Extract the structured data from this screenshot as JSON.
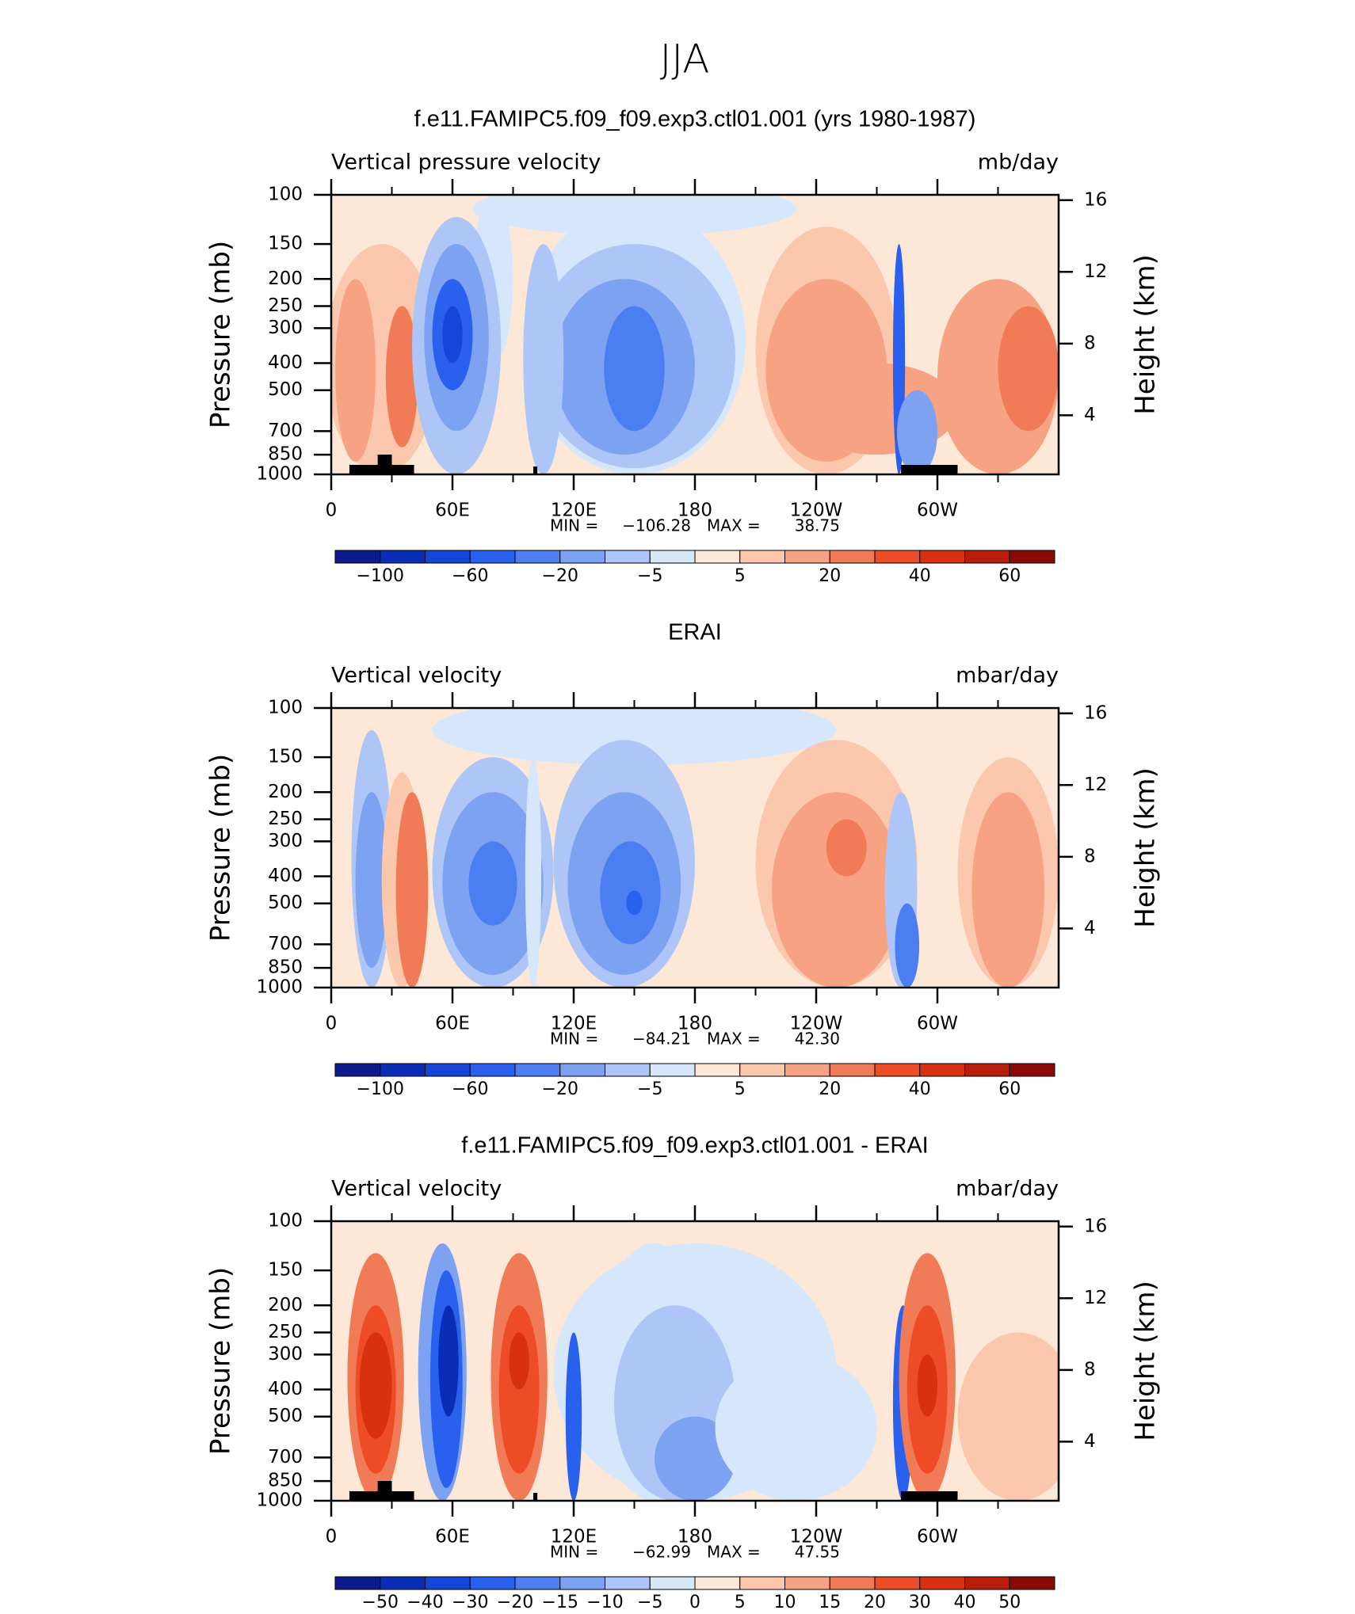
{
  "title": "JJA",
  "chart_data": [
    {
      "type": "contour",
      "title": "f.e11.FAMIPC5.f09_f09.exp3.ctl01.001 (yrs 1980-1987)",
      "left_label": "Vertical pressure velocity",
      "right_label": "mb/day",
      "ylabel": "Pressure (mb)",
      "y2label": "Height (km)",
      "xlim": [
        0,
        360
      ],
      "xticks": [
        0,
        {
          "value": 60,
          "label": "60E"
        },
        {
          "value": 120,
          "label": "120E"
        },
        180,
        {
          "value": 240,
          "label": "120W"
        },
        {
          "value": 300,
          "label": "60W"
        }
      ],
      "ylim": [
        1000,
        100
      ],
      "ylog": true,
      "yticks": [
        100,
        150,
        200,
        250,
        300,
        400,
        500,
        700,
        850,
        1000
      ],
      "y2lim": [
        0.7,
        16.3
      ],
      "y2ticks": [
        16,
        12,
        8,
        4
      ],
      "min_text": "MIN =",
      "min": {
        "value": -106.28,
        "label": "−106.28"
      },
      "max_text": "MAX =",
      "max": 38.75,
      "colors": [
        "#0b1a8a",
        "#0a2db8",
        "#1446d9",
        "#2a60ee",
        "#4b7ef0",
        "#7ea2f2",
        "#aec5f7",
        "#d6e6fb",
        "#fde7d6",
        "#fbc8ae",
        "#f7a383",
        "#f27b57",
        "#ee4c26",
        "#d9300f",
        "#b81e0a",
        "#8b0a05"
      ],
      "levels": [
        {
          "value": -100,
          "label": "−100"
        },
        {
          "value": -60,
          "label": "−60"
        },
        {
          "value": -20,
          "label": "−20"
        },
        {
          "value": -5,
          "label": "−5"
        },
        5,
        20,
        40,
        60
      ]
    },
    {
      "type": "contour",
      "title": "ERAI",
      "left_label": "Vertical velocity",
      "right_label": "mbar/day",
      "ylabel": "Pressure (mb)",
      "y2label": "Height (km)",
      "xlim": [
        0,
        360
      ],
      "xticks": [
        0,
        {
          "value": 60,
          "label": "60E"
        },
        {
          "value": 120,
          "label": "120E"
        },
        180,
        {
          "value": 240,
          "label": "120W"
        },
        {
          "value": 300,
          "label": "60W"
        }
      ],
      "ylim": [
        1000,
        100
      ],
      "ylog": true,
      "yticks": [
        100,
        150,
        200,
        250,
        300,
        400,
        500,
        700,
        850,
        1000
      ],
      "y2lim": [
        0.7,
        16.3
      ],
      "y2ticks": [
        16,
        12,
        8,
        4
      ],
      "min_text": "MIN =",
      "min": {
        "value": -84.21,
        "label": "−84.21"
      },
      "max_text": "MAX =",
      "max": {
        "value": 42.3,
        "label": "42.30"
      },
      "colors": [
        "#0b1a8a",
        "#0a2db8",
        "#1446d9",
        "#2a60ee",
        "#4b7ef0",
        "#7ea2f2",
        "#aec5f7",
        "#d6e6fb",
        "#fde7d6",
        "#fbc8ae",
        "#f7a383",
        "#f27b57",
        "#ee4c26",
        "#d9300f",
        "#b81e0a",
        "#8b0a05"
      ],
      "levels": [
        {
          "value": -100,
          "label": "−100"
        },
        {
          "value": -60,
          "label": "−60"
        },
        {
          "value": -20,
          "label": "−20"
        },
        {
          "value": -5,
          "label": "−5"
        },
        5,
        20,
        40,
        60
      ]
    },
    {
      "type": "contour",
      "title": "f.e11.FAMIPC5.f09_f09.exp3.ctl01.001 - ERAI",
      "left_label": "Vertical velocity",
      "right_label": "mbar/day",
      "ylabel": "Pressure (mb)",
      "y2label": "Height (km)",
      "xlim": [
        0,
        360
      ],
      "xticks": [
        0,
        {
          "value": 60,
          "label": "60E"
        },
        {
          "value": 120,
          "label": "120E"
        },
        180,
        {
          "value": 240,
          "label": "120W"
        },
        {
          "value": 300,
          "label": "60W"
        }
      ],
      "ylim": [
        1000,
        100
      ],
      "ylog": true,
      "yticks": [
        100,
        150,
        200,
        250,
        300,
        400,
        500,
        700,
        850,
        1000
      ],
      "y2lim": [
        0.7,
        16.3
      ],
      "y2ticks": [
        16,
        12,
        8,
        4
      ],
      "min_text": "MIN =",
      "min": {
        "value": -62.99,
        "label": "−62.99"
      },
      "max_text": "MAX =",
      "max": 47.55,
      "colors": [
        "#0b1a8a",
        "#0a2db8",
        "#1446d9",
        "#2a60ee",
        "#4b7ef0",
        "#7ea2f2",
        "#aec5f7",
        "#d6e6fb",
        "#fde7d6",
        "#fbc8ae",
        "#f7a383",
        "#f27b57",
        "#ee4c26",
        "#d9300f",
        "#b81e0a",
        "#8b0a05"
      ],
      "levels": [
        {
          "value": -50,
          "label": "−50"
        },
        {
          "value": -40,
          "label": "−40"
        },
        {
          "value": -30,
          "label": "−30"
        },
        {
          "value": -20,
          "label": "−20"
        },
        {
          "value": -15,
          "label": "−15"
        },
        {
          "value": -10,
          "label": "−10"
        },
        {
          "value": -5,
          "label": "−5"
        },
        0,
        5,
        10,
        15,
        20,
        30,
        40,
        50
      ]
    }
  ]
}
